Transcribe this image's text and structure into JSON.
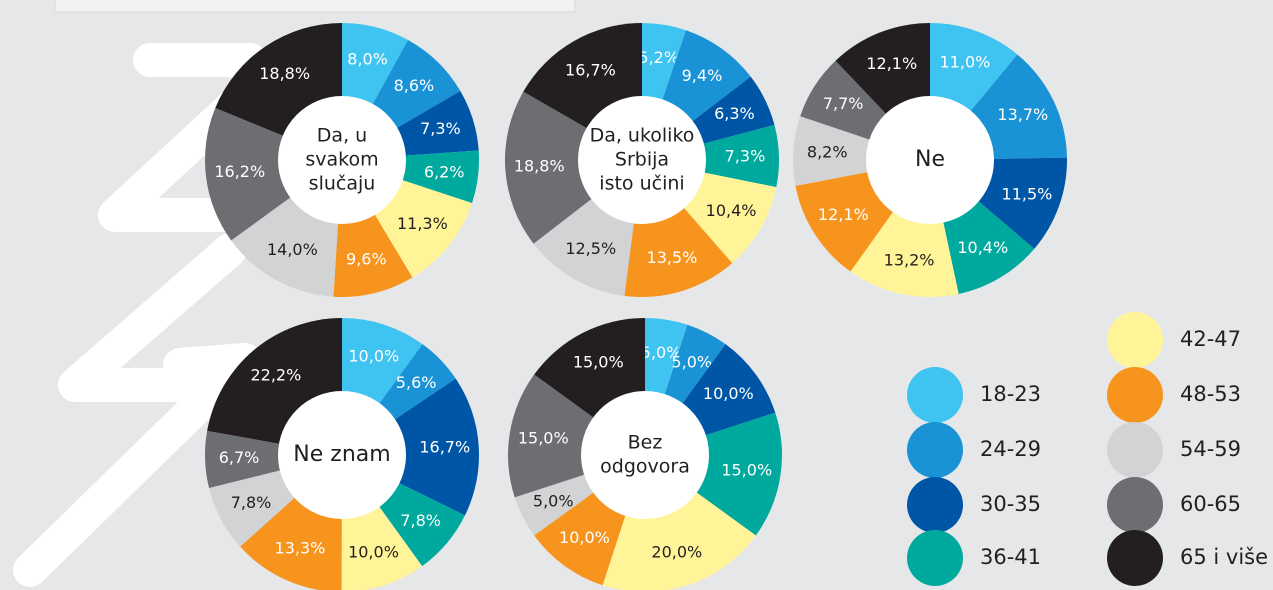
{
  "chart_data": [
    {
      "type": "pie",
      "title": [
        "Da, u",
        "svakom",
        "slučaju"
      ],
      "values": [
        8.0,
        8.6,
        7.3,
        6.2,
        11.3,
        9.6,
        14.0,
        16.2,
        18.8
      ],
      "value_labels": [
        "8,0%",
        "8,6%",
        "7,3%",
        "6,2%",
        "11,3%",
        "9,6%",
        "14,0%",
        "16,2%",
        "18,8%"
      ]
    },
    {
      "type": "pie",
      "title": [
        "Da, ukoliko",
        "Srbija",
        "isto učini"
      ],
      "values": [
        5.2,
        9.4,
        6.3,
        7.3,
        10.4,
        13.5,
        12.5,
        18.8,
        16.7
      ],
      "value_labels": [
        "5,2%",
        "9,4%",
        "6,3%",
        "7,3%",
        "10,4%",
        "13,5%",
        "12,5%",
        "18,8%",
        "16,7%"
      ]
    },
    {
      "type": "pie",
      "title": [
        "Ne"
      ],
      "values": [
        11.0,
        13.7,
        11.5,
        10.4,
        13.2,
        12.1,
        8.2,
        7.7,
        12.1
      ],
      "value_labels": [
        "11,0%",
        "13,7%",
        "11,5%",
        "10,4%",
        "13,2%",
        "12,1%",
        "8,2%",
        "7,7%",
        "12,1%"
      ]
    },
    {
      "type": "pie",
      "title": [
        "Ne znam"
      ],
      "values": [
        10.0,
        5.6,
        16.7,
        7.8,
        10.0,
        13.3,
        7.8,
        6.7,
        22.2
      ],
      "value_labels": [
        "10,0%",
        "5,6%",
        "16,7%",
        "7,8%",
        "10,0%",
        "13,3%",
        "7,8%",
        "6,7%",
        "22,2%"
      ]
    },
    {
      "type": "pie",
      "title": [
        "Bez",
        "odgovora"
      ],
      "values": [
        5.0,
        5.0,
        10.0,
        15.0,
        20.0,
        10.0,
        5.0,
        15.0,
        15.0
      ],
      "value_labels": [
        "5,0%",
        "5,0%",
        "10,0%",
        "15,0%",
        "20,0%",
        "10,0%",
        "5,0%",
        "15,0%",
        "15,0%"
      ]
    }
  ],
  "legend": {
    "labels": [
      "18-23",
      "24-29",
      "30-35",
      "36-41",
      "42-47",
      "48-53",
      "54-59",
      "60-65",
      "65 i više"
    ],
    "colors": [
      "#3fc3f0",
      "#1a93d6",
      "#0056a6",
      "#00a99d",
      "#fff598",
      "#f7941d",
      "#d1d3d4",
      "#6d6e71",
      "#231f20"
    ]
  }
}
